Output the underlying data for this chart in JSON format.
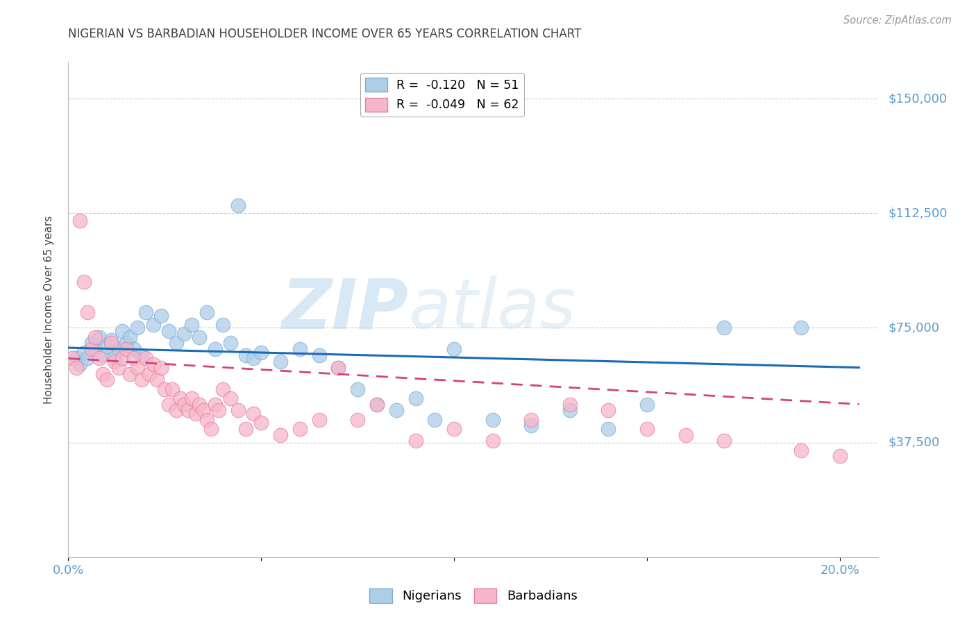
{
  "title": "NIGERIAN VS BARBADIAN HOUSEHOLDER INCOME OVER 65 YEARS CORRELATION CHART",
  "source": "Source: ZipAtlas.com",
  "ylabel": "Householder Income Over 65 years",
  "ylim": [
    0,
    162000
  ],
  "xlim": [
    0,
    0.21
  ],
  "yticks": [
    0,
    37500,
    75000,
    112500,
    150000
  ],
  "ytick_labels": [
    "",
    "$37,500",
    "$75,000",
    "$112,500",
    "$150,000"
  ],
  "xticks": [
    0.0,
    0.05,
    0.1,
    0.15,
    0.2
  ],
  "xtick_labels": [
    "0.0%",
    "",
    "",
    "",
    "20.0%"
  ],
  "watermark_zip": "ZIP",
  "watermark_atlas": "atlas",
  "legend_line1": "R =  -0.120   N = 51",
  "legend_line2": "R =  -0.049   N = 62",
  "nigerian_color": "#aecde8",
  "nigerian_edge_color": "#7bafd4",
  "barbadian_color": "#f7b6c9",
  "barbadian_edge_color": "#e87fa0",
  "nigerian_line_color": "#1a6bb5",
  "barbadian_line_color": "#d44080",
  "nigerian_trend_x": [
    0.0,
    0.205
  ],
  "nigerian_trend_y": [
    68500,
    62000
  ],
  "barbadian_trend_x": [
    0.0,
    0.205
  ],
  "barbadian_trend_y": [
    65000,
    50000
  ],
  "background_color": "#ffffff",
  "grid_color": "#cccccc",
  "tick_color": "#5b9bd5",
  "title_color": "#404040",
  "ylabel_color": "#404040",
  "nigerian_points": [
    [
      0.002,
      65000
    ],
    [
      0.003,
      63000
    ],
    [
      0.004,
      67000
    ],
    [
      0.005,
      65000
    ],
    [
      0.006,
      70000
    ],
    [
      0.007,
      68000
    ],
    [
      0.008,
      72000
    ],
    [
      0.009,
      66000
    ],
    [
      0.01,
      69000
    ],
    [
      0.011,
      71000
    ],
    [
      0.012,
      65000
    ],
    [
      0.013,
      68000
    ],
    [
      0.014,
      74000
    ],
    [
      0.015,
      70000
    ],
    [
      0.016,
      72000
    ],
    [
      0.017,
      68000
    ],
    [
      0.018,
      75000
    ],
    [
      0.019,
      66000
    ],
    [
      0.02,
      80000
    ],
    [
      0.022,
      76000
    ],
    [
      0.024,
      79000
    ],
    [
      0.026,
      74000
    ],
    [
      0.028,
      70000
    ],
    [
      0.03,
      73000
    ],
    [
      0.032,
      76000
    ],
    [
      0.034,
      72000
    ],
    [
      0.036,
      80000
    ],
    [
      0.038,
      68000
    ],
    [
      0.04,
      76000
    ],
    [
      0.042,
      70000
    ],
    [
      0.044,
      115000
    ],
    [
      0.046,
      66000
    ],
    [
      0.048,
      65000
    ],
    [
      0.05,
      67000
    ],
    [
      0.055,
      64000
    ],
    [
      0.06,
      68000
    ],
    [
      0.065,
      66000
    ],
    [
      0.07,
      62000
    ],
    [
      0.075,
      55000
    ],
    [
      0.08,
      50000
    ],
    [
      0.085,
      48000
    ],
    [
      0.09,
      52000
    ],
    [
      0.095,
      45000
    ],
    [
      0.1,
      68000
    ],
    [
      0.11,
      45000
    ],
    [
      0.12,
      43000
    ],
    [
      0.13,
      48000
    ],
    [
      0.14,
      42000
    ],
    [
      0.15,
      50000
    ],
    [
      0.17,
      75000
    ],
    [
      0.19,
      75000
    ]
  ],
  "barbadian_points": [
    [
      0.001,
      65000
    ],
    [
      0.002,
      62000
    ],
    [
      0.003,
      110000
    ],
    [
      0.004,
      90000
    ],
    [
      0.005,
      80000
    ],
    [
      0.006,
      68000
    ],
    [
      0.007,
      72000
    ],
    [
      0.008,
      65000
    ],
    [
      0.009,
      60000
    ],
    [
      0.01,
      58000
    ],
    [
      0.011,
      70000
    ],
    [
      0.012,
      64000
    ],
    [
      0.013,
      62000
    ],
    [
      0.014,
      65000
    ],
    [
      0.015,
      68000
    ],
    [
      0.016,
      60000
    ],
    [
      0.017,
      65000
    ],
    [
      0.018,
      62000
    ],
    [
      0.019,
      58000
    ],
    [
      0.02,
      65000
    ],
    [
      0.021,
      60000
    ],
    [
      0.022,
      63000
    ],
    [
      0.023,
      58000
    ],
    [
      0.024,
      62000
    ],
    [
      0.025,
      55000
    ],
    [
      0.026,
      50000
    ],
    [
      0.027,
      55000
    ],
    [
      0.028,
      48000
    ],
    [
      0.029,
      52000
    ],
    [
      0.03,
      50000
    ],
    [
      0.031,
      48000
    ],
    [
      0.032,
      52000
    ],
    [
      0.033,
      47000
    ],
    [
      0.034,
      50000
    ],
    [
      0.035,
      48000
    ],
    [
      0.036,
      45000
    ],
    [
      0.037,
      42000
    ],
    [
      0.038,
      50000
    ],
    [
      0.039,
      48000
    ],
    [
      0.04,
      55000
    ],
    [
      0.042,
      52000
    ],
    [
      0.044,
      48000
    ],
    [
      0.046,
      42000
    ],
    [
      0.048,
      47000
    ],
    [
      0.05,
      44000
    ],
    [
      0.055,
      40000
    ],
    [
      0.06,
      42000
    ],
    [
      0.065,
      45000
    ],
    [
      0.07,
      62000
    ],
    [
      0.075,
      45000
    ],
    [
      0.08,
      50000
    ],
    [
      0.09,
      38000
    ],
    [
      0.1,
      42000
    ],
    [
      0.11,
      38000
    ],
    [
      0.12,
      45000
    ],
    [
      0.13,
      50000
    ],
    [
      0.14,
      48000
    ],
    [
      0.15,
      42000
    ],
    [
      0.16,
      40000
    ],
    [
      0.17,
      38000
    ],
    [
      0.19,
      35000
    ],
    [
      0.2,
      33000
    ]
  ]
}
